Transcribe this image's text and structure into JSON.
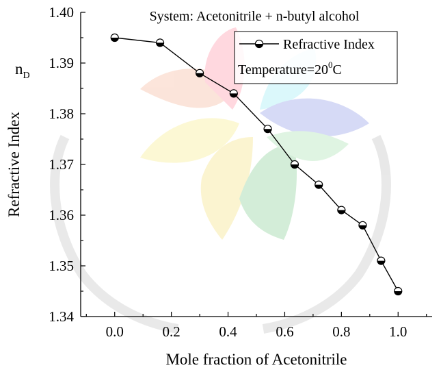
{
  "chart_data": {
    "type": "line",
    "title": "System: Acetonitrile + n-butyl alcohol",
    "xlabel": "Mole fraction of Acetonitrile",
    "ylabel": "Refractive Index",
    "y_symbol": {
      "main": "n",
      "sub": "D"
    },
    "xlim": [
      -0.12,
      1.12
    ],
    "ylim": [
      1.34,
      1.4
    ],
    "x_ticks": [
      "0.0",
      "0.2",
      "0.4",
      "0.6",
      "0.8",
      "1.0"
    ],
    "y_ticks": [
      "1.34",
      "1.35",
      "1.36",
      "1.37",
      "1.38",
      "1.39",
      "1.40"
    ],
    "grid": false,
    "legend_position": "top-right",
    "series": [
      {
        "name": "Refractive Index",
        "marker": "half-filled-circle",
        "x": [
          0.0,
          0.16,
          0.3,
          0.42,
          0.54,
          0.635,
          0.72,
          0.8,
          0.875,
          0.94,
          1.0
        ],
        "y": [
          1.395,
          1.394,
          1.388,
          1.384,
          1.377,
          1.37,
          1.366,
          1.361,
          1.358,
          1.351,
          1.345
        ]
      }
    ],
    "annotation": {
      "label": "Temperature=20",
      "sup": "0",
      "unit": "C"
    }
  }
}
